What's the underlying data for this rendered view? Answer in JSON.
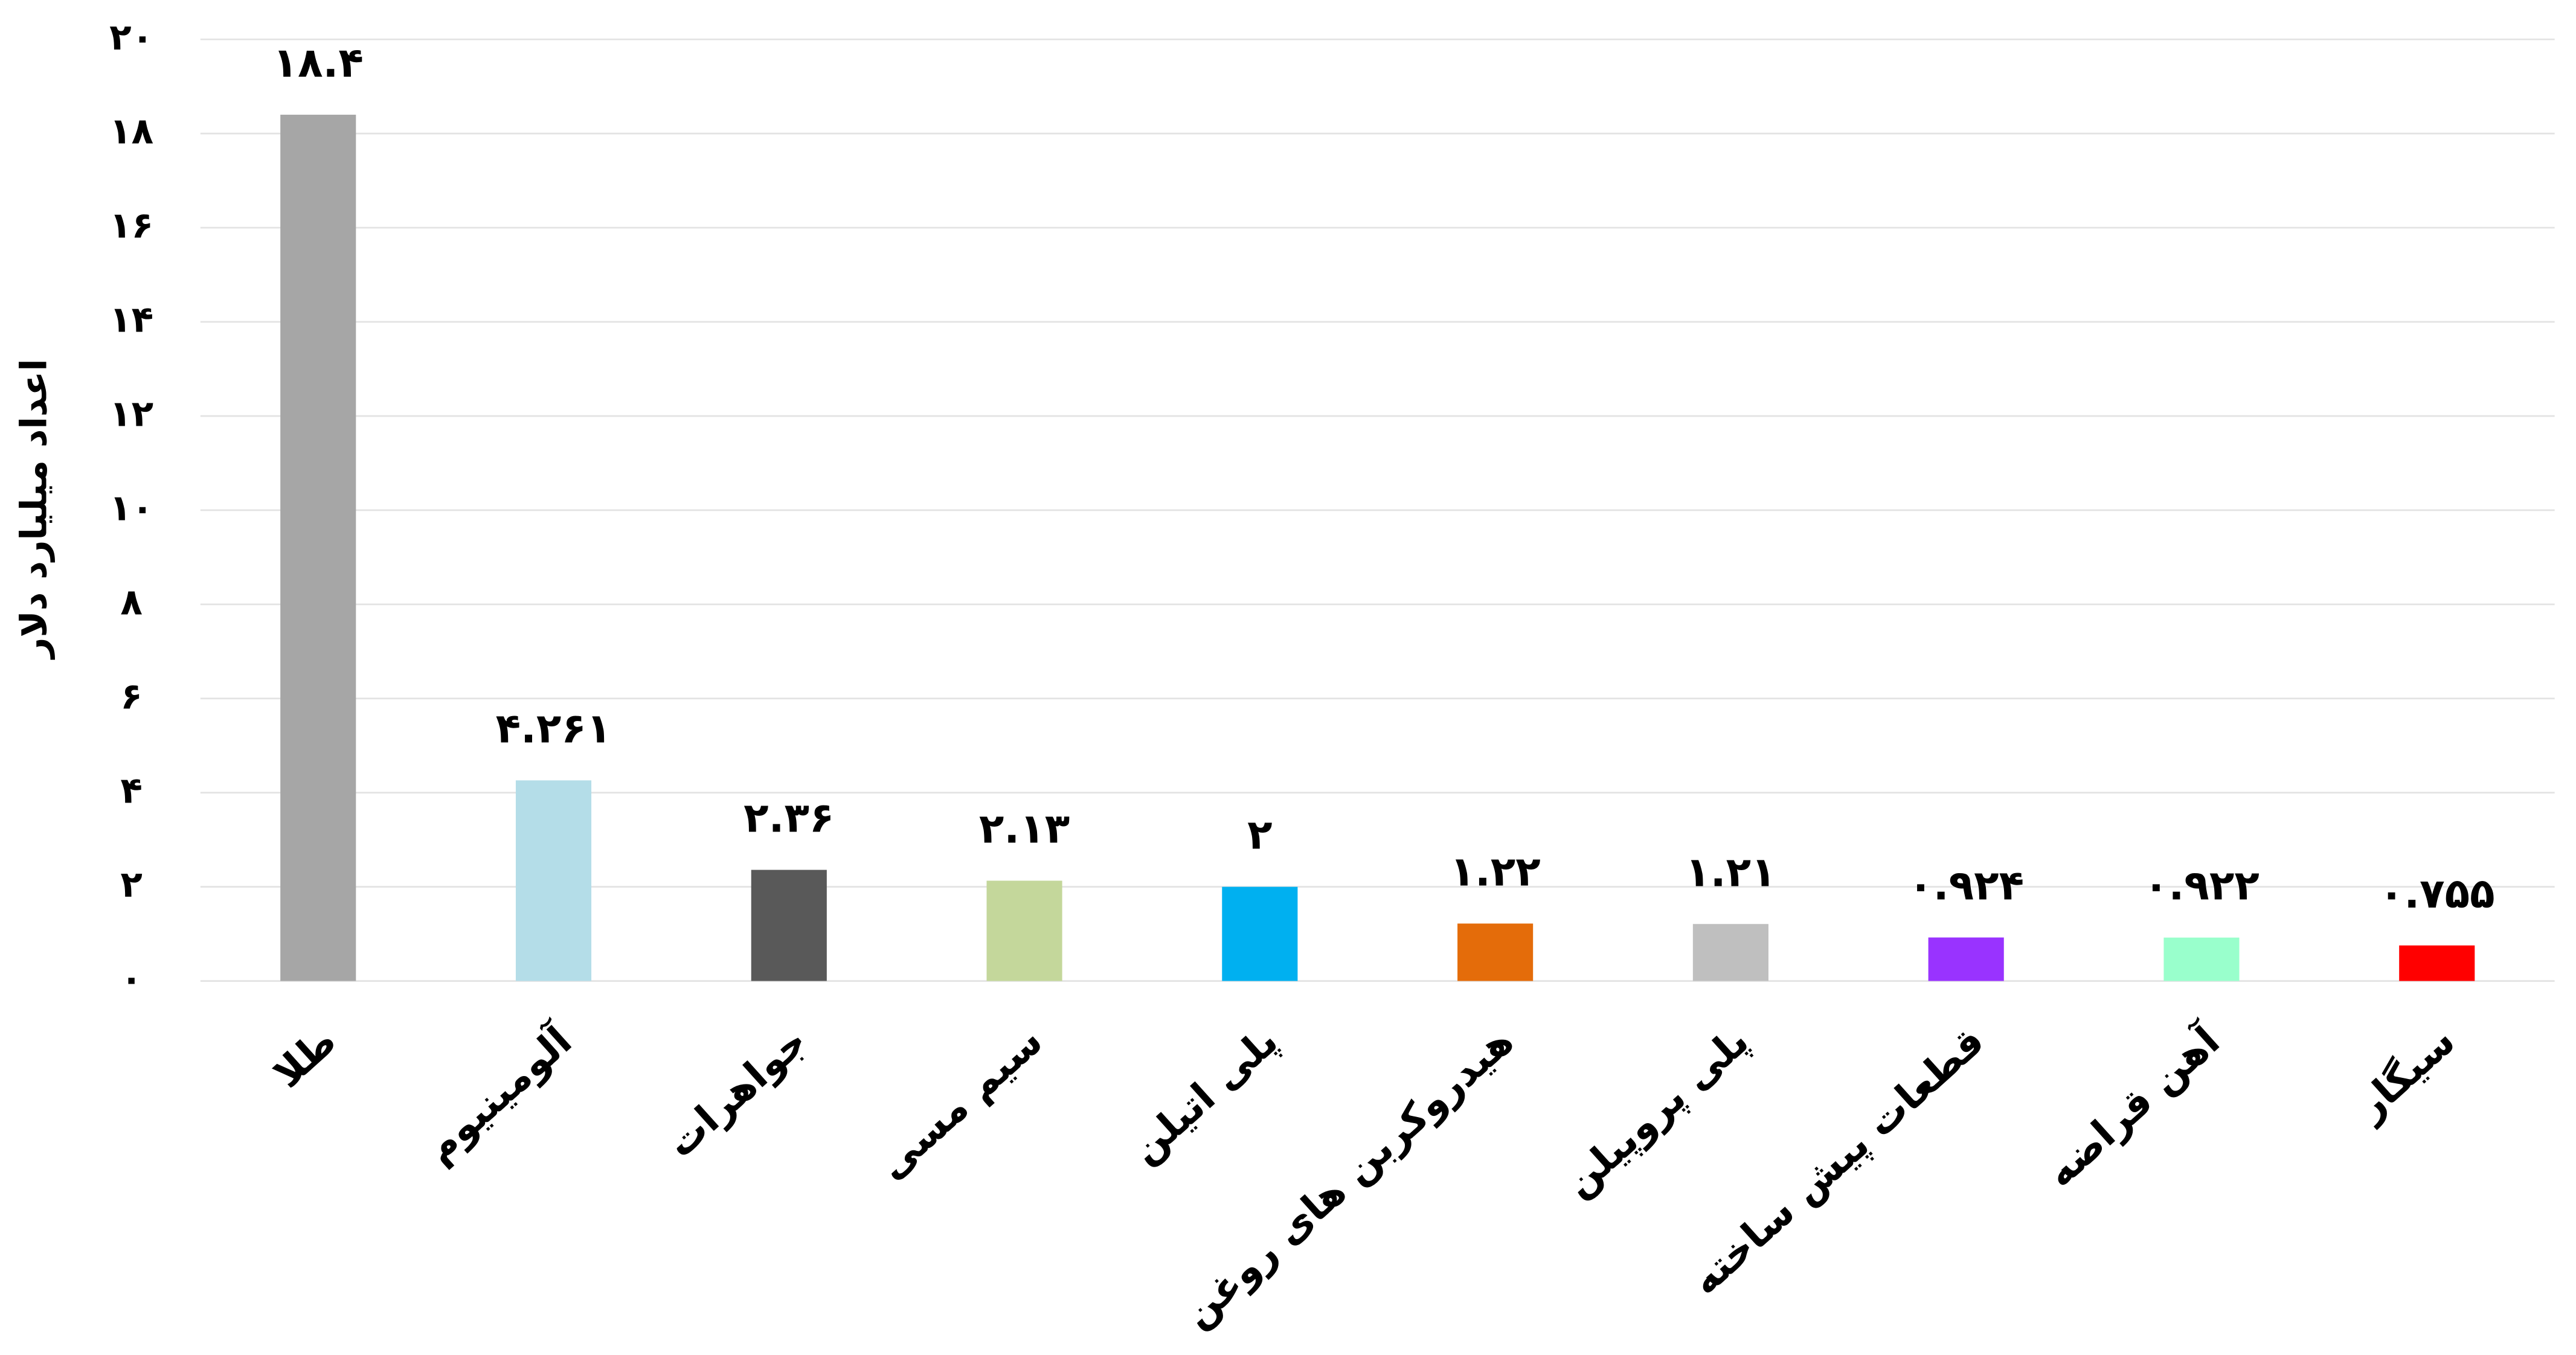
{
  "chart_data": {
    "type": "bar",
    "ylabel": "اعداد میلیارد دلار",
    "categories": [
      "طلا",
      "آلومینیوم",
      "جواهرات",
      "سیم مسی",
      "پلی اتیلن",
      "هیدروکربن های روغن",
      "پلی پروپیلن",
      "قطعات پیش ساخته",
      "آهن قراضه",
      "سیگار"
    ],
    "values": [
      18.4,
      4.261,
      2.36,
      2.13,
      2,
      1.22,
      1.21,
      0.924,
      0.922,
      0.755
    ],
    "value_labels": [
      "۱۸.۴",
      "۴.۲۶۱",
      "۲.۳۶",
      "۲.۱۳",
      "۲",
      "۱.۲۲",
      "۱.۲۱",
      "۰.۹۲۴",
      "۰.۹۲۲",
      "۰.۷۵۵"
    ],
    "colors": [
      "#a6a6a6",
      "#b4dde8",
      "#595959",
      "#c4d79b",
      "#00b0f0",
      "#e46c0a",
      "#bfbfbf",
      "#9933ff",
      "#99ffcc",
      "#ff0000"
    ],
    "ylim": [
      0,
      20
    ],
    "yticks": [
      {
        "value": 0,
        "label": "۰"
      },
      {
        "value": 2,
        "label": "۲"
      },
      {
        "value": 4,
        "label": "۴"
      },
      {
        "value": 6,
        "label": "۶"
      },
      {
        "value": 8,
        "label": "۸"
      },
      {
        "value": 10,
        "label": "۱۰"
      },
      {
        "value": 12,
        "label": "۱۲"
      },
      {
        "value": 14,
        "label": "۱۴"
      },
      {
        "value": 16,
        "label": "۱۶"
      },
      {
        "value": 18,
        "label": "۱۸"
      },
      {
        "value": 20,
        "label": "۲۰"
      }
    ],
    "grid": true
  }
}
